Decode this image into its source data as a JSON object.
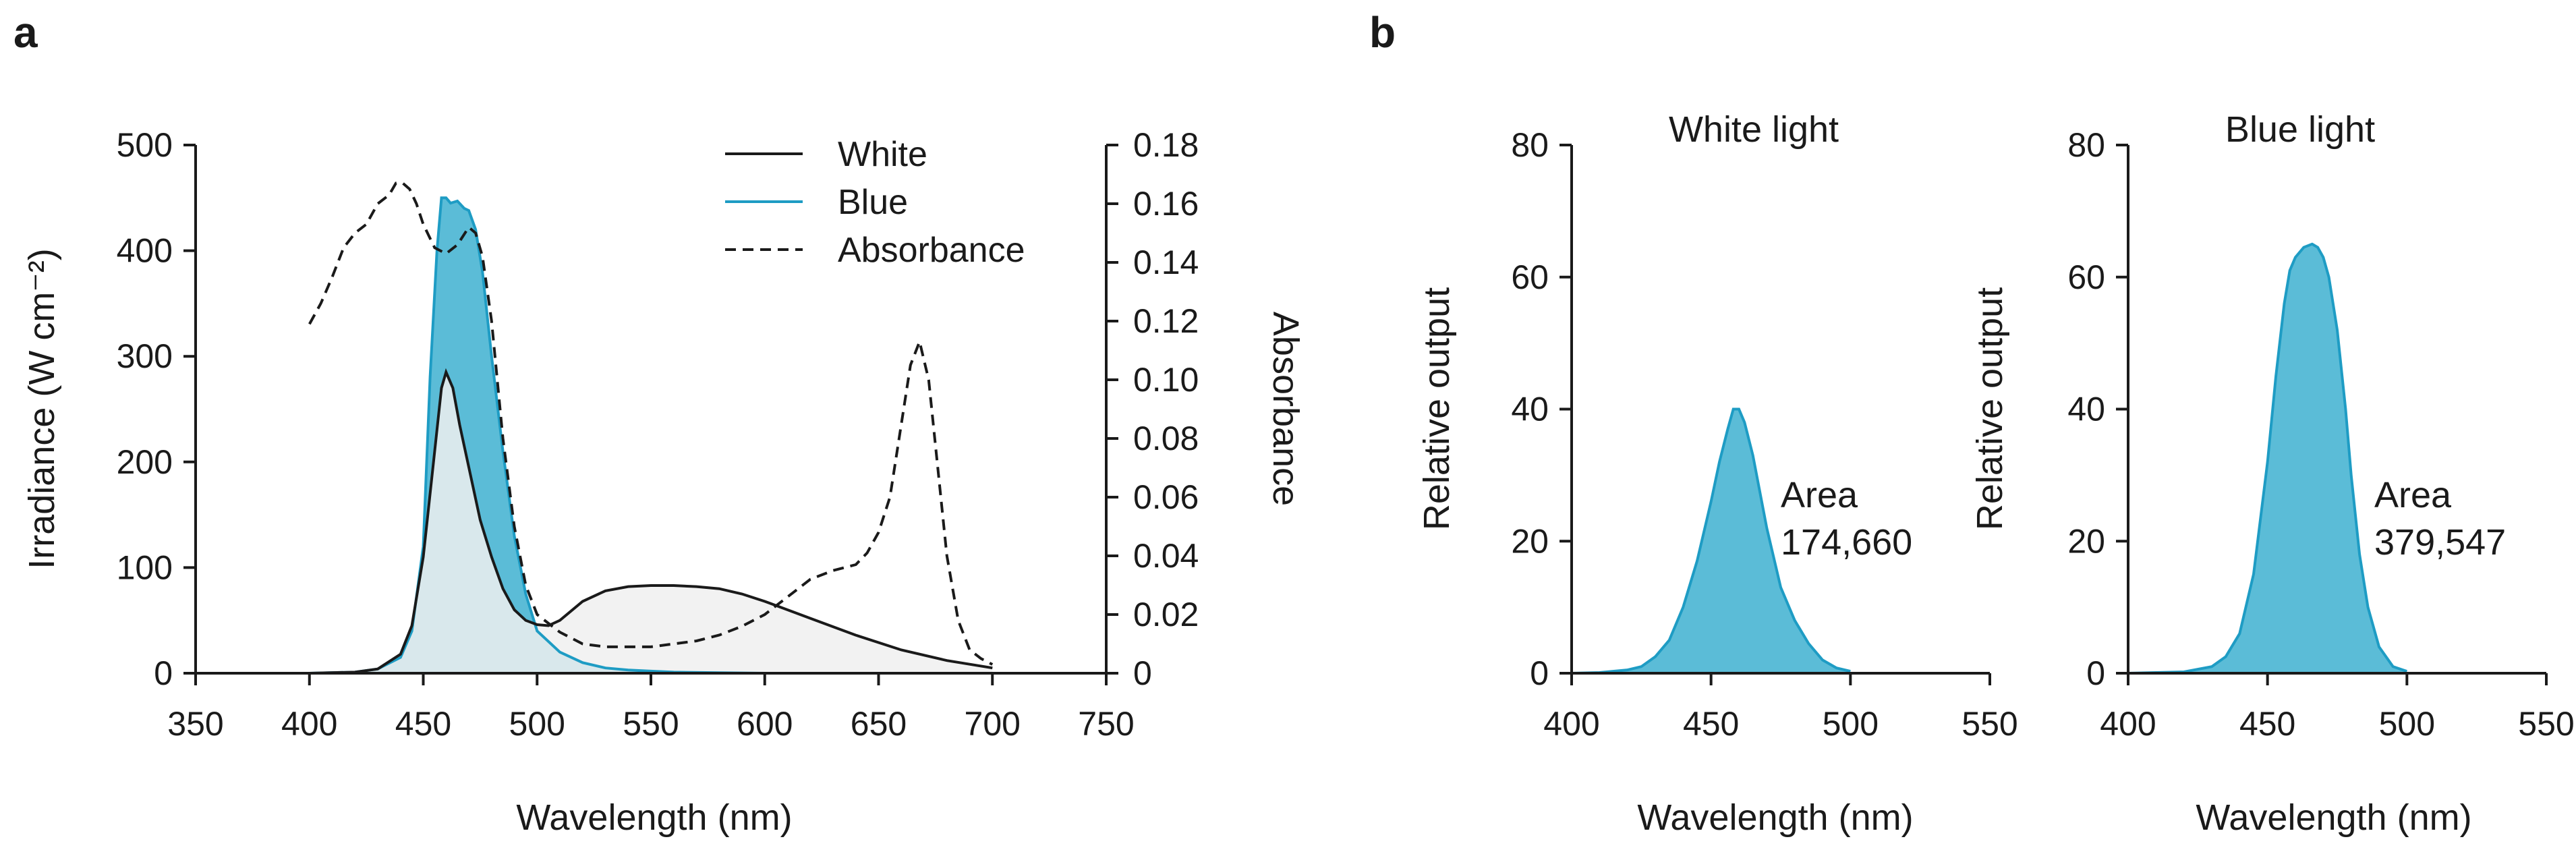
{
  "panels": {
    "a": {
      "label": "a"
    },
    "b": {
      "label": "b"
    }
  },
  "colors": {
    "blue_line": "#1e9cc4",
    "blue_fill": "#5bbcd7",
    "white_line": "#1a1a1a",
    "white_fill": "#f0f0f0",
    "absorbance_line": "#1a1a1a"
  },
  "chart_data": [
    {
      "id": "panel-a",
      "type": "line",
      "title": "",
      "xlabel": "Wavelength (nm)",
      "ylabel": "Irradiance (W cm⁻²)",
      "y2label": "Absorbance",
      "xlim": [
        350,
        750
      ],
      "ylim": [
        0,
        500
      ],
      "y2lim": [
        0,
        0.18
      ],
      "xticks": [
        "350",
        "400",
        "450",
        "500",
        "550",
        "600",
        "650",
        "700",
        "750"
      ],
      "yticks": [
        "0",
        "100",
        "200",
        "300",
        "400",
        "500"
      ],
      "y2ticks": [
        "0",
        "0.02",
        "0.04",
        "0.06",
        "0.08",
        "0.10",
        "0.12",
        "0.14",
        "0.16",
        "0.18"
      ],
      "legend": {
        "position": "top-right",
        "entries": [
          {
            "label": "White",
            "style": "solid-black"
          },
          {
            "label": "Blue",
            "style": "solid-blue"
          },
          {
            "label": "Absorbance",
            "style": "dashed-black"
          }
        ]
      },
      "series": [
        {
          "name": "Blue",
          "axis": "left",
          "filled": true,
          "x": [
            400,
            420,
            430,
            440,
            445,
            450,
            453,
            456,
            458,
            460,
            462,
            465,
            468,
            470,
            473,
            476,
            480,
            485,
            490,
            495,
            500,
            510,
            520,
            530,
            540,
            550,
            560,
            580,
            600
          ],
          "y": [
            0,
            1,
            4,
            15,
            40,
            120,
            280,
            400,
            450,
            450,
            445,
            447,
            440,
            438,
            420,
            380,
            300,
            210,
            130,
            75,
            40,
            20,
            10,
            5,
            3,
            2,
            1,
            0.5,
            0
          ]
        },
        {
          "name": "White",
          "axis": "left",
          "filled": true,
          "x": [
            400,
            420,
            430,
            440,
            445,
            450,
            455,
            458,
            460,
            463,
            466,
            470,
            475,
            480,
            485,
            490,
            495,
            500,
            505,
            510,
            520,
            530,
            540,
            550,
            560,
            570,
            580,
            590,
            600,
            620,
            640,
            660,
            680,
            700
          ],
          "y": [
            0,
            1,
            4,
            18,
            45,
            110,
            210,
            270,
            285,
            270,
            235,
            195,
            145,
            110,
            80,
            60,
            50,
            46,
            45,
            50,
            68,
            78,
            82,
            83,
            83,
            82,
            80,
            75,
            68,
            52,
            36,
            22,
            12,
            5
          ]
        },
        {
          "name": "Absorbance",
          "axis": "right",
          "dashed": true,
          "x": [
            400,
            405,
            410,
            415,
            420,
            425,
            430,
            435,
            438,
            441,
            444,
            447,
            450,
            455,
            460,
            465,
            470,
            473,
            476,
            480,
            485,
            490,
            495,
            500,
            510,
            520,
            530,
            540,
            550,
            560,
            570,
            580,
            590,
            600,
            610,
            620,
            630,
            640,
            645,
            650,
            655,
            660,
            664,
            668,
            672,
            676,
            680,
            685,
            690,
            695,
            700
          ],
          "y": [
            0.119,
            0.126,
            0.135,
            0.145,
            0.15,
            0.153,
            0.16,
            0.163,
            0.167,
            0.167,
            0.165,
            0.16,
            0.153,
            0.145,
            0.143,
            0.146,
            0.152,
            0.15,
            0.142,
            0.12,
            0.08,
            0.05,
            0.03,
            0.02,
            0.014,
            0.01,
            0.009,
            0.009,
            0.009,
            0.01,
            0.011,
            0.013,
            0.016,
            0.02,
            0.026,
            0.032,
            0.035,
            0.037,
            0.041,
            0.048,
            0.06,
            0.085,
            0.105,
            0.113,
            0.1,
            0.07,
            0.04,
            0.018,
            0.008,
            0.005,
            0.003
          ]
        }
      ]
    },
    {
      "id": "panel-b-white",
      "type": "area",
      "title": "White light",
      "xlabel": "Wavelength (nm)",
      "ylabel": "Relative output",
      "xlim": [
        400,
        550
      ],
      "ylim": [
        0,
        80
      ],
      "xticks": [
        "400",
        "450",
        "500",
        "550"
      ],
      "yticks": [
        "0",
        "20",
        "40",
        "60",
        "80"
      ],
      "annotation": {
        "label": "Area",
        "value": "174,660"
      },
      "series": [
        {
          "name": "White light",
          "x": [
            400,
            410,
            420,
            425,
            430,
            435,
            440,
            445,
            450,
            453,
            456,
            458,
            460,
            462,
            465,
            470,
            475,
            480,
            485,
            490,
            495,
            500
          ],
          "y": [
            0,
            0.1,
            0.5,
            1,
            2.5,
            5,
            10,
            17,
            26,
            32,
            37,
            40,
            40,
            38,
            33,
            22,
            13,
            8,
            4.5,
            2,
            0.8,
            0.3
          ]
        }
      ]
    },
    {
      "id": "panel-b-blue",
      "type": "area",
      "title": "Blue light",
      "xlabel": "Wavelength (nm)",
      "ylabel": "Relative output",
      "xlim": [
        400,
        550
      ],
      "ylim": [
        0,
        80
      ],
      "xticks": [
        "400",
        "450",
        "500",
        "550"
      ],
      "yticks": [
        "0",
        "20",
        "40",
        "60",
        "80"
      ],
      "annotation": {
        "label": "Area",
        "value": "379,547"
      },
      "series": [
        {
          "name": "Blue light",
          "x": [
            400,
            420,
            430,
            435,
            440,
            445,
            450,
            453,
            456,
            458,
            460,
            463,
            466,
            468,
            470,
            472,
            475,
            478,
            480,
            483,
            486,
            490,
            495,
            500
          ],
          "y": [
            0,
            0.2,
            1,
            2.5,
            6,
            15,
            32,
            45,
            56,
            61,
            63,
            64.5,
            65,
            64.5,
            63,
            60,
            52,
            40,
            30,
            18,
            10,
            4,
            1,
            0.3
          ]
        }
      ]
    }
  ]
}
